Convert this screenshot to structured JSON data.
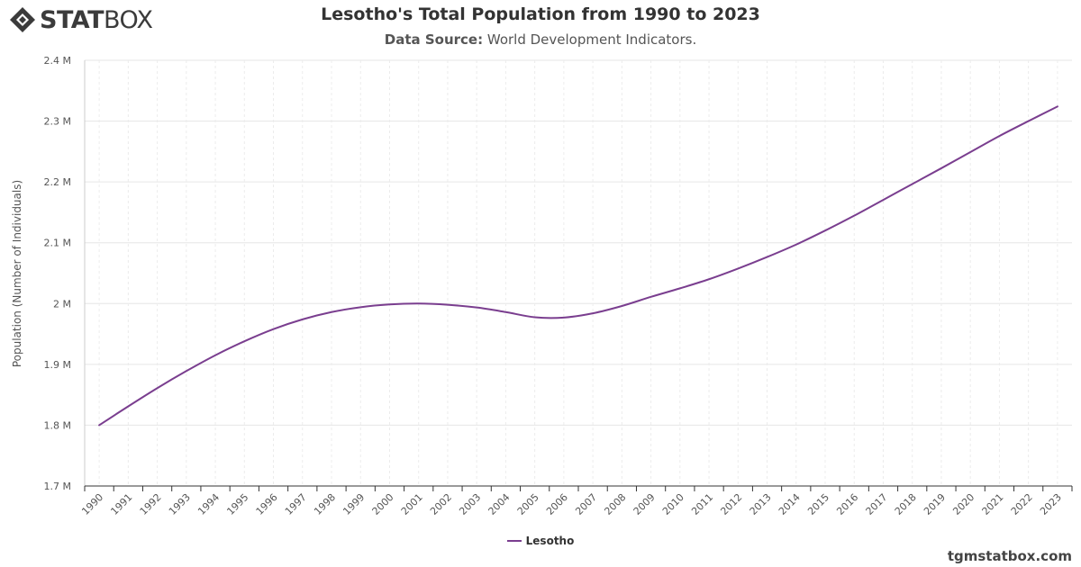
{
  "logo": {
    "text_bold": "STAT",
    "text_light": "BOX"
  },
  "header": {
    "title": "Lesotho's Total Population from 1990 to 2023",
    "subtitle_label": "Data Source:",
    "subtitle_value": " World Development Indicators."
  },
  "watermark": "tgmstatbox.com",
  "colors": {
    "series": "#7a3e8f",
    "grid": "#e6e6e6",
    "text": "#333333"
  },
  "chart_data": {
    "type": "line",
    "title": "Lesotho's Total Population from 1990 to 2023",
    "subtitle": "Data Source: World Development Indicators.",
    "xlabel": "",
    "ylabel": "Population (Number of Individuals)",
    "ylim": [
      1700000,
      2400000
    ],
    "yticks": [
      1700000,
      1800000,
      1900000,
      2000000,
      2100000,
      2200000,
      2300000,
      2400000
    ],
    "ytick_labels": [
      "1.7 M",
      "1.8 M",
      "1.9 M",
      "2 M",
      "2.1 M",
      "2.2 M",
      "2.3 M",
      "2.4 M"
    ],
    "grid": true,
    "legend": "bottom-center",
    "categories": [
      "1990",
      "1991",
      "1992",
      "1993",
      "1994",
      "1995",
      "1996",
      "1997",
      "1998",
      "1999",
      "2000",
      "2001",
      "2002",
      "2003",
      "2004",
      "2005",
      "2006",
      "2007",
      "2008",
      "2009",
      "2010",
      "2011",
      "2012",
      "2013",
      "2014",
      "2015",
      "2016",
      "2017",
      "2018",
      "2019",
      "2020",
      "2021",
      "2022",
      "2023"
    ],
    "series": [
      {
        "name": "Lesotho",
        "color": "#7a3e8f",
        "values": [
          1800000,
          1831000,
          1861000,
          1889000,
          1915000,
          1938000,
          1958000,
          1974000,
          1986000,
          1994000,
          1998500,
          2000000,
          1998000,
          1993500,
          1986000,
          1977500,
          1977000,
          1984000,
          1996000,
          2011000,
          2025000,
          2040000,
          2057500,
          2076500,
          2097000,
          2120000,
          2144500,
          2170500,
          2196500,
          2222500,
          2249000,
          2275500,
          2300000,
          2324000
        ]
      }
    ]
  }
}
